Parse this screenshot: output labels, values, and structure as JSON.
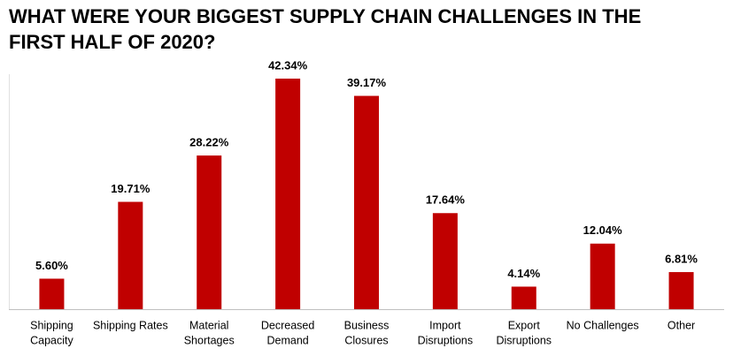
{
  "chart_data": {
    "type": "bar",
    "title": [
      "WHAT WERE YOUR BIGGEST SUPPLY CHAIN CHALLENGES IN THE",
      "FIRST HALF OF 2020?"
    ],
    "categories": [
      [
        "Shipping",
        "Capacity"
      ],
      [
        "Shipping Rates"
      ],
      [
        "Material",
        "Shortages"
      ],
      [
        "Decreased",
        "Demand"
      ],
      [
        "Business",
        "Closures"
      ],
      [
        "Import",
        "Disruptions"
      ],
      [
        "Export",
        "Disruptions"
      ],
      [
        "No Challenges"
      ],
      [
        "Other"
      ]
    ],
    "values": [
      5.6,
      19.71,
      28.22,
      42.34,
      39.17,
      17.64,
      4.14,
      12.04,
      6.81
    ],
    "value_labels": [
      "5.60%",
      "19.71%",
      "28.22%",
      "42.34%",
      "39.17%",
      "17.64%",
      "4.14%",
      "12.04%",
      "6.81%"
    ],
    "color": "#c00000"
  }
}
